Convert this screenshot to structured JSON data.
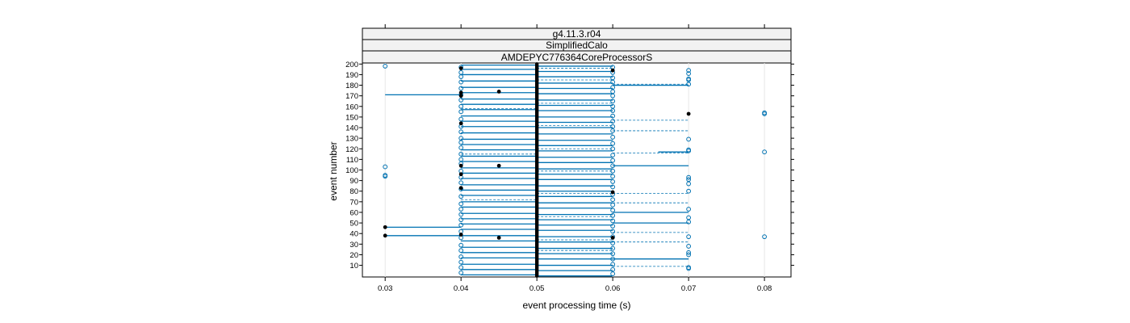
{
  "chart_data": {
    "type": "scatter",
    "strips": [
      "g4.11.3.r04",
      "SimplifiedCalo",
      "AMDEPYC776364CoreProcessorS"
    ],
    "xlabel": "event processing time (s)",
    "ylabel": "event number",
    "xlim": [
      0.027,
      0.0835
    ],
    "ylim": [
      -1,
      201
    ],
    "x_ticks": [
      0.03,
      0.04,
      0.05,
      0.06,
      0.07,
      0.08
    ],
    "x_tick_labels": [
      "0.03",
      "0.04",
      "0.05",
      "0.06",
      "0.07",
      "0.08"
    ],
    "y_ticks": [
      10,
      20,
      30,
      40,
      50,
      60,
      70,
      80,
      90,
      100,
      110,
      120,
      130,
      140,
      150,
      160,
      170,
      180,
      190,
      200
    ],
    "y_tick_labels": [
      "10",
      "20",
      "30",
      "40",
      "50",
      "60",
      "70",
      "80",
      "90",
      "100",
      "110",
      "120",
      "130",
      "140",
      "150",
      "160",
      "170",
      "180",
      "190",
      "200"
    ],
    "vertical_reference_lines": [
      0.03,
      0.04,
      0.05,
      0.06,
      0.07,
      0.08
    ],
    "colors": {
      "open_points": "#0072B2",
      "filled_points": "#000000",
      "segments": "#0072B2",
      "grid": "#e6e6e6",
      "strip_bg": "#f2f2f2"
    },
    "open_points": [
      [
        0.03,
        198
      ],
      [
        0.03,
        103
      ],
      [
        0.03,
        95
      ],
      [
        0.03,
        94
      ],
      [
        0.04,
        197
      ],
      [
        0.04,
        192
      ],
      [
        0.04,
        188
      ],
      [
        0.04,
        183
      ],
      [
        0.04,
        177
      ],
      [
        0.04,
        171
      ],
      [
        0.04,
        166
      ],
      [
        0.04,
        160
      ],
      [
        0.04,
        155
      ],
      [
        0.04,
        148
      ],
      [
        0.04,
        141
      ],
      [
        0.04,
        136
      ],
      [
        0.04,
        130
      ],
      [
        0.04,
        126
      ],
      [
        0.04,
        121
      ],
      [
        0.04,
        115
      ],
      [
        0.04,
        110
      ],
      [
        0.04,
        106
      ],
      [
        0.04,
        99
      ],
      [
        0.04,
        93
      ],
      [
        0.04,
        88
      ],
      [
        0.04,
        82
      ],
      [
        0.04,
        75
      ],
      [
        0.04,
        68
      ],
      [
        0.04,
        63
      ],
      [
        0.04,
        58
      ],
      [
        0.04,
        53
      ],
      [
        0.04,
        48
      ],
      [
        0.04,
        42
      ],
      [
        0.04,
        36
      ],
      [
        0.04,
        29
      ],
      [
        0.04,
        24
      ],
      [
        0.04,
        18
      ],
      [
        0.04,
        13
      ],
      [
        0.04,
        8
      ],
      [
        0.04,
        3
      ],
      [
        0.06,
        197
      ],
      [
        0.06,
        192
      ],
      [
        0.06,
        187
      ],
      [
        0.06,
        183
      ],
      [
        0.06,
        178
      ],
      [
        0.06,
        174
      ],
      [
        0.06,
        170
      ],
      [
        0.06,
        165
      ],
      [
        0.06,
        160
      ],
      [
        0.06,
        156
      ],
      [
        0.06,
        151
      ],
      [
        0.06,
        146
      ],
      [
        0.06,
        141
      ],
      [
        0.06,
        137
      ],
      [
        0.06,
        131
      ],
      [
        0.06,
        125
      ],
      [
        0.06,
        120
      ],
      [
        0.06,
        114
      ],
      [
        0.06,
        109
      ],
      [
        0.06,
        104
      ],
      [
        0.06,
        99
      ],
      [
        0.06,
        94
      ],
      [
        0.06,
        89
      ],
      [
        0.06,
        84
      ],
      [
        0.06,
        77
      ],
      [
        0.06,
        72
      ],
      [
        0.06,
        67
      ],
      [
        0.06,
        62
      ],
      [
        0.06,
        57
      ],
      [
        0.06,
        52
      ],
      [
        0.06,
        47
      ],
      [
        0.06,
        42
      ],
      [
        0.06,
        37
      ],
      [
        0.06,
        31
      ],
      [
        0.06,
        26
      ],
      [
        0.06,
        21
      ],
      [
        0.06,
        16
      ],
      [
        0.06,
        11
      ],
      [
        0.06,
        6
      ],
      [
        0.06,
        2
      ],
      [
        0.07,
        194
      ],
      [
        0.07,
        191
      ],
      [
        0.07,
        186
      ],
      [
        0.07,
        185
      ],
      [
        0.07,
        181
      ],
      [
        0.07,
        129
      ],
      [
        0.07,
        119
      ],
      [
        0.07,
        118
      ],
      [
        0.07,
        93
      ],
      [
        0.07,
        91
      ],
      [
        0.07,
        87
      ],
      [
        0.07,
        80
      ],
      [
        0.07,
        63
      ],
      [
        0.07,
        55
      ],
      [
        0.07,
        51
      ],
      [
        0.07,
        37
      ],
      [
        0.07,
        28
      ],
      [
        0.07,
        22
      ],
      [
        0.07,
        20
      ],
      [
        0.07,
        8
      ],
      [
        0.07,
        7
      ],
      [
        0.08,
        154
      ],
      [
        0.08,
        153
      ],
      [
        0.08,
        117
      ],
      [
        0.08,
        37
      ]
    ],
    "filled_points": [
      [
        0.03,
        46
      ],
      [
        0.03,
        38
      ],
      [
        0.04,
        196
      ],
      [
        0.04,
        173
      ],
      [
        0.04,
        170
      ],
      [
        0.04,
        144
      ],
      [
        0.04,
        104
      ],
      [
        0.04,
        96
      ],
      [
        0.04,
        83
      ],
      [
        0.04,
        39
      ],
      [
        0.045,
        174
      ],
      [
        0.045,
        104
      ],
      [
        0.045,
        36
      ],
      [
        0.06,
        194
      ],
      [
        0.06,
        79
      ],
      [
        0.06,
        36
      ],
      [
        0.07,
        153
      ]
    ],
    "solid_segments": [
      [
        0.03,
        0.04,
        171
      ],
      [
        0.03,
        0.04,
        46
      ],
      [
        0.03,
        0.04,
        38
      ],
      [
        0.04,
        0.05,
        199
      ],
      [
        0.04,
        0.05,
        195
      ],
      [
        0.04,
        0.05,
        190
      ],
      [
        0.04,
        0.05,
        184
      ],
      [
        0.04,
        0.05,
        178
      ],
      [
        0.04,
        0.05,
        173
      ],
      [
        0.04,
        0.05,
        167
      ],
      [
        0.04,
        0.05,
        162
      ],
      [
        0.04,
        0.05,
        157
      ],
      [
        0.04,
        0.05,
        151
      ],
      [
        0.04,
        0.05,
        146
      ],
      [
        0.04,
        0.05,
        141
      ],
      [
        0.04,
        0.05,
        135
      ],
      [
        0.04,
        0.05,
        129
      ],
      [
        0.04,
        0.05,
        124
      ],
      [
        0.04,
        0.05,
        119
      ],
      [
        0.04,
        0.05,
        113
      ],
      [
        0.04,
        0.05,
        108
      ],
      [
        0.04,
        0.05,
        102
      ],
      [
        0.04,
        0.05,
        97
      ],
      [
        0.04,
        0.05,
        92
      ],
      [
        0.04,
        0.05,
        86
      ],
      [
        0.04,
        0.05,
        81
      ],
      [
        0.04,
        0.05,
        76
      ],
      [
        0.04,
        0.05,
        70
      ],
      [
        0.04,
        0.05,
        65
      ],
      [
        0.04,
        0.05,
        59
      ],
      [
        0.04,
        0.05,
        54
      ],
      [
        0.04,
        0.05,
        49
      ],
      [
        0.04,
        0.05,
        44
      ],
      [
        0.04,
        0.05,
        38
      ],
      [
        0.04,
        0.05,
        33
      ],
      [
        0.04,
        0.05,
        27
      ],
      [
        0.04,
        0.05,
        22
      ],
      [
        0.04,
        0.05,
        17
      ],
      [
        0.04,
        0.05,
        11
      ],
      [
        0.04,
        0.05,
        6
      ],
      [
        0.04,
        0.05,
        1
      ],
      [
        0.05,
        0.06,
        198
      ],
      [
        0.05,
        0.06,
        193
      ],
      [
        0.05,
        0.06,
        188
      ],
      [
        0.05,
        0.06,
        182
      ],
      [
        0.05,
        0.06,
        177
      ],
      [
        0.05,
        0.06,
        172
      ],
      [
        0.05,
        0.06,
        166
      ],
      [
        0.05,
        0.06,
        161
      ],
      [
        0.05,
        0.06,
        156
      ],
      [
        0.05,
        0.06,
        150
      ],
      [
        0.05,
        0.06,
        145
      ],
      [
        0.05,
        0.06,
        140
      ],
      [
        0.05,
        0.06,
        134
      ],
      [
        0.05,
        0.06,
        128
      ],
      [
        0.05,
        0.06,
        123
      ],
      [
        0.05,
        0.06,
        118
      ],
      [
        0.05,
        0.06,
        112
      ],
      [
        0.05,
        0.06,
        107
      ],
      [
        0.05,
        0.06,
        101
      ],
      [
        0.05,
        0.06,
        96
      ],
      [
        0.05,
        0.06,
        91
      ],
      [
        0.05,
        0.06,
        85
      ],
      [
        0.05,
        0.06,
        80
      ],
      [
        0.05,
        0.06,
        75
      ],
      [
        0.05,
        0.06,
        69
      ],
      [
        0.05,
        0.06,
        64
      ],
      [
        0.05,
        0.06,
        58
      ],
      [
        0.05,
        0.06,
        53
      ],
      [
        0.05,
        0.06,
        48
      ],
      [
        0.05,
        0.06,
        43
      ],
      [
        0.05,
        0.06,
        37
      ],
      [
        0.05,
        0.06,
        32
      ],
      [
        0.05,
        0.06,
        26
      ],
      [
        0.05,
        0.06,
        21
      ],
      [
        0.05,
        0.06,
        16
      ],
      [
        0.05,
        0.06,
        10
      ],
      [
        0.05,
        0.06,
        5
      ],
      [
        0.05,
        0.06,
        0
      ],
      [
        0.06,
        0.07,
        180
      ],
      [
        0.06,
        0.07,
        104
      ],
      [
        0.06,
        0.07,
        60
      ],
      [
        0.06,
        0.07,
        50
      ],
      [
        0.06,
        0.07,
        16
      ],
      [
        0.066,
        0.07,
        117
      ]
    ],
    "dashed_segments": [
      [
        0.05,
        0.06,
        196
      ],
      [
        0.05,
        0.06,
        185
      ],
      [
        0.05,
        0.06,
        163
      ],
      [
        0.05,
        0.06,
        142
      ],
      [
        0.05,
        0.06,
        120
      ],
      [
        0.05,
        0.06,
        99
      ],
      [
        0.05,
        0.06,
        78
      ],
      [
        0.05,
        0.06,
        56
      ],
      [
        0.05,
        0.06,
        34
      ],
      [
        0.05,
        0.06,
        24
      ],
      [
        0.04,
        0.05,
        158
      ],
      [
        0.04,
        0.05,
        115
      ],
      [
        0.04,
        0.05,
        72
      ],
      [
        0.06,
        0.07,
        181
      ],
      [
        0.06,
        0.07,
        147
      ],
      [
        0.06,
        0.07,
        137
      ],
      [
        0.06,
        0.07,
        116
      ],
      [
        0.06,
        0.07,
        78
      ],
      [
        0.06,
        0.07,
        69
      ],
      [
        0.06,
        0.07,
        41
      ],
      [
        0.06,
        0.07,
        32
      ],
      [
        0.06,
        0.07,
        9
      ]
    ],
    "dense_black_column_x": 0.05
  }
}
